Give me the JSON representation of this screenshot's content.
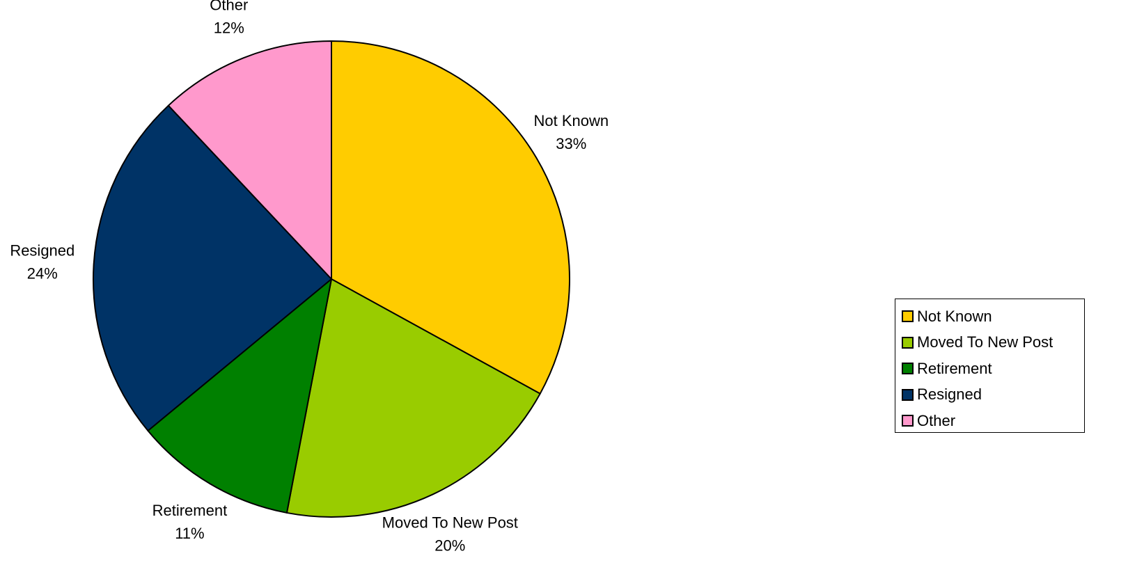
{
  "chart_data": {
    "type": "pie",
    "categories": [
      "Not Known",
      "Moved To New Post",
      "Retirement",
      "Resigned",
      "Other"
    ],
    "values": [
      33,
      20,
      11,
      24,
      12
    ],
    "value_labels": [
      "33%",
      "20%",
      "11%",
      "24%",
      "12%"
    ],
    "colors": [
      "#FFCC00",
      "#99CC00",
      "#008000",
      "#003366",
      "#FF99CC"
    ],
    "start_angle_deg": 0,
    "direction": "clockwise",
    "legend_placement": "right"
  },
  "legend": {
    "items": [
      {
        "label": "Not Known",
        "color": "#FFCC00"
      },
      {
        "label": "Moved To New Post",
        "color": "#99CC00"
      },
      {
        "label": "Retirement",
        "color": "#008000"
      },
      {
        "label": "Resigned",
        "color": "#003366"
      },
      {
        "label": "Other",
        "color": "#FF99CC"
      }
    ]
  }
}
